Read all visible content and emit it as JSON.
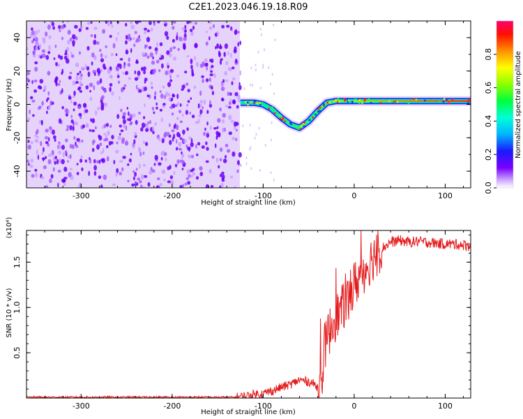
{
  "title": "C2E1.2023.046.19.18.R09",
  "colors": {
    "spectrum_background": "#d9b8f7",
    "spectrum_dots": "#6a00f4",
    "trace": "#e41a1c",
    "axis": "#000000"
  },
  "chart_data": [
    {
      "type": "heatmap",
      "name": "spectrogram",
      "xlabel": "Height of straight line (km)",
      "ylabel": "Frequency (Hz)",
      "xlim": [
        -360,
        128
      ],
      "ylim": [
        -50,
        50
      ],
      "xticks": [
        -300,
        -200,
        -100,
        0,
        100
      ],
      "xtick_labels": [
        "-300",
        "-200",
        "-100",
        "0",
        "100"
      ],
      "yticks": [
        -40,
        -20,
        0,
        20,
        40
      ],
      "ytick_labels": [
        "-40",
        "-20",
        "0",
        "20",
        "40"
      ],
      "noise_region_x": [
        -360,
        -125
      ],
      "signal_track": {
        "x": [
          -125,
          -110,
          -100,
          -90,
          -80,
          -70,
          -60,
          -50,
          -40,
          -30,
          -20,
          -10,
          0,
          10,
          30,
          60,
          100,
          128
        ],
        "y": [
          1,
          1,
          0,
          -3,
          -8,
          -12,
          -14,
          -10,
          -4,
          1,
          2,
          2,
          2,
          2,
          2,
          2,
          2,
          2
        ]
      },
      "colorbar": {
        "label": "Normalized spectral amplitude",
        "range": [
          0,
          1
        ],
        "ticks": [
          0.0,
          0.2,
          0.4,
          0.6,
          0.8
        ],
        "tick_labels": [
          "0.0",
          "0.2",
          "0.4",
          "0.6",
          "0.8"
        ]
      }
    },
    {
      "type": "line",
      "name": "snr",
      "xlabel": "Height of straight line (km)",
      "ylabel": "SNR (10 * v/v)",
      "y_multiplier": "(x10⁴)",
      "xlim": [
        -360,
        128
      ],
      "ylim": [
        0,
        1.85
      ],
      "xticks": [
        -300,
        -200,
        -100,
        0,
        100
      ],
      "xtick_labels": [
        "-300",
        "-200",
        "-100",
        "0",
        "100"
      ],
      "yticks": [
        0.5,
        1.0,
        1.5
      ],
      "ytick_labels": [
        "0.5",
        "1.0",
        "1.5"
      ],
      "series": [
        {
          "x": [
            -360,
            -300,
            -200,
            -130,
            -120,
            -110,
            -100,
            -90,
            -80,
            -70,
            -60,
            -50,
            -45,
            -40,
            -38,
            -35,
            -33,
            -30,
            -25,
            -20,
            -15,
            -10,
            -5,
            0,
            10,
            20,
            30,
            40,
            50,
            60,
            70,
            80,
            90,
            100,
            110,
            120,
            128
          ],
          "values": [
            0.01,
            0.01,
            0.01,
            0.01,
            0.02,
            0.04,
            0.05,
            0.08,
            0.12,
            0.15,
            0.2,
            0.18,
            0.16,
            0.12,
            0.05,
            0.25,
            0.55,
            0.65,
            0.8,
            0.9,
            0.95,
            1.05,
            1.1,
            1.25,
            1.4,
            1.55,
            1.65,
            1.72,
            1.74,
            1.72,
            1.73,
            1.72,
            1.71,
            1.7,
            1.7,
            1.69,
            1.68
          ]
        }
      ]
    }
  ]
}
